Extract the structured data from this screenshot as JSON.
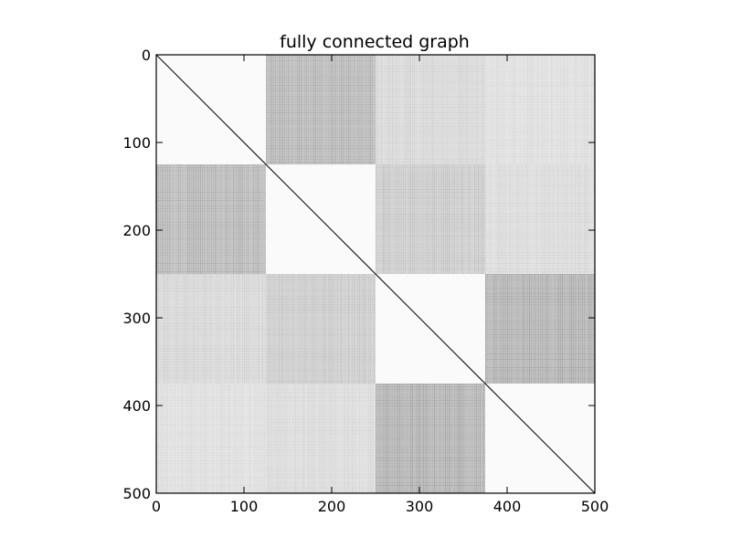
{
  "chart_data": {
    "type": "heatmap",
    "title": "fully connected graph",
    "xlabel": "",
    "ylabel": "",
    "size": 500,
    "xlim": [
      0,
      500
    ],
    "ylim": [
      500,
      0
    ],
    "xticks": [
      "0",
      "100",
      "200",
      "300",
      "400",
      "500"
    ],
    "yticks": [
      "0",
      "100",
      "200",
      "300",
      "400",
      "500"
    ],
    "block_boundaries": [
      0,
      125,
      250,
      375,
      500
    ],
    "block_shading": [
      [
        0.02,
        0.22,
        0.12,
        0.1
      ],
      [
        0.22,
        0.02,
        0.16,
        0.11
      ],
      [
        0.12,
        0.16,
        0.02,
        0.24
      ],
      [
        0.1,
        0.11,
        0.24,
        0.02
      ]
    ],
    "diagonal": true,
    "colormap": "gray_r",
    "grid": false
  }
}
